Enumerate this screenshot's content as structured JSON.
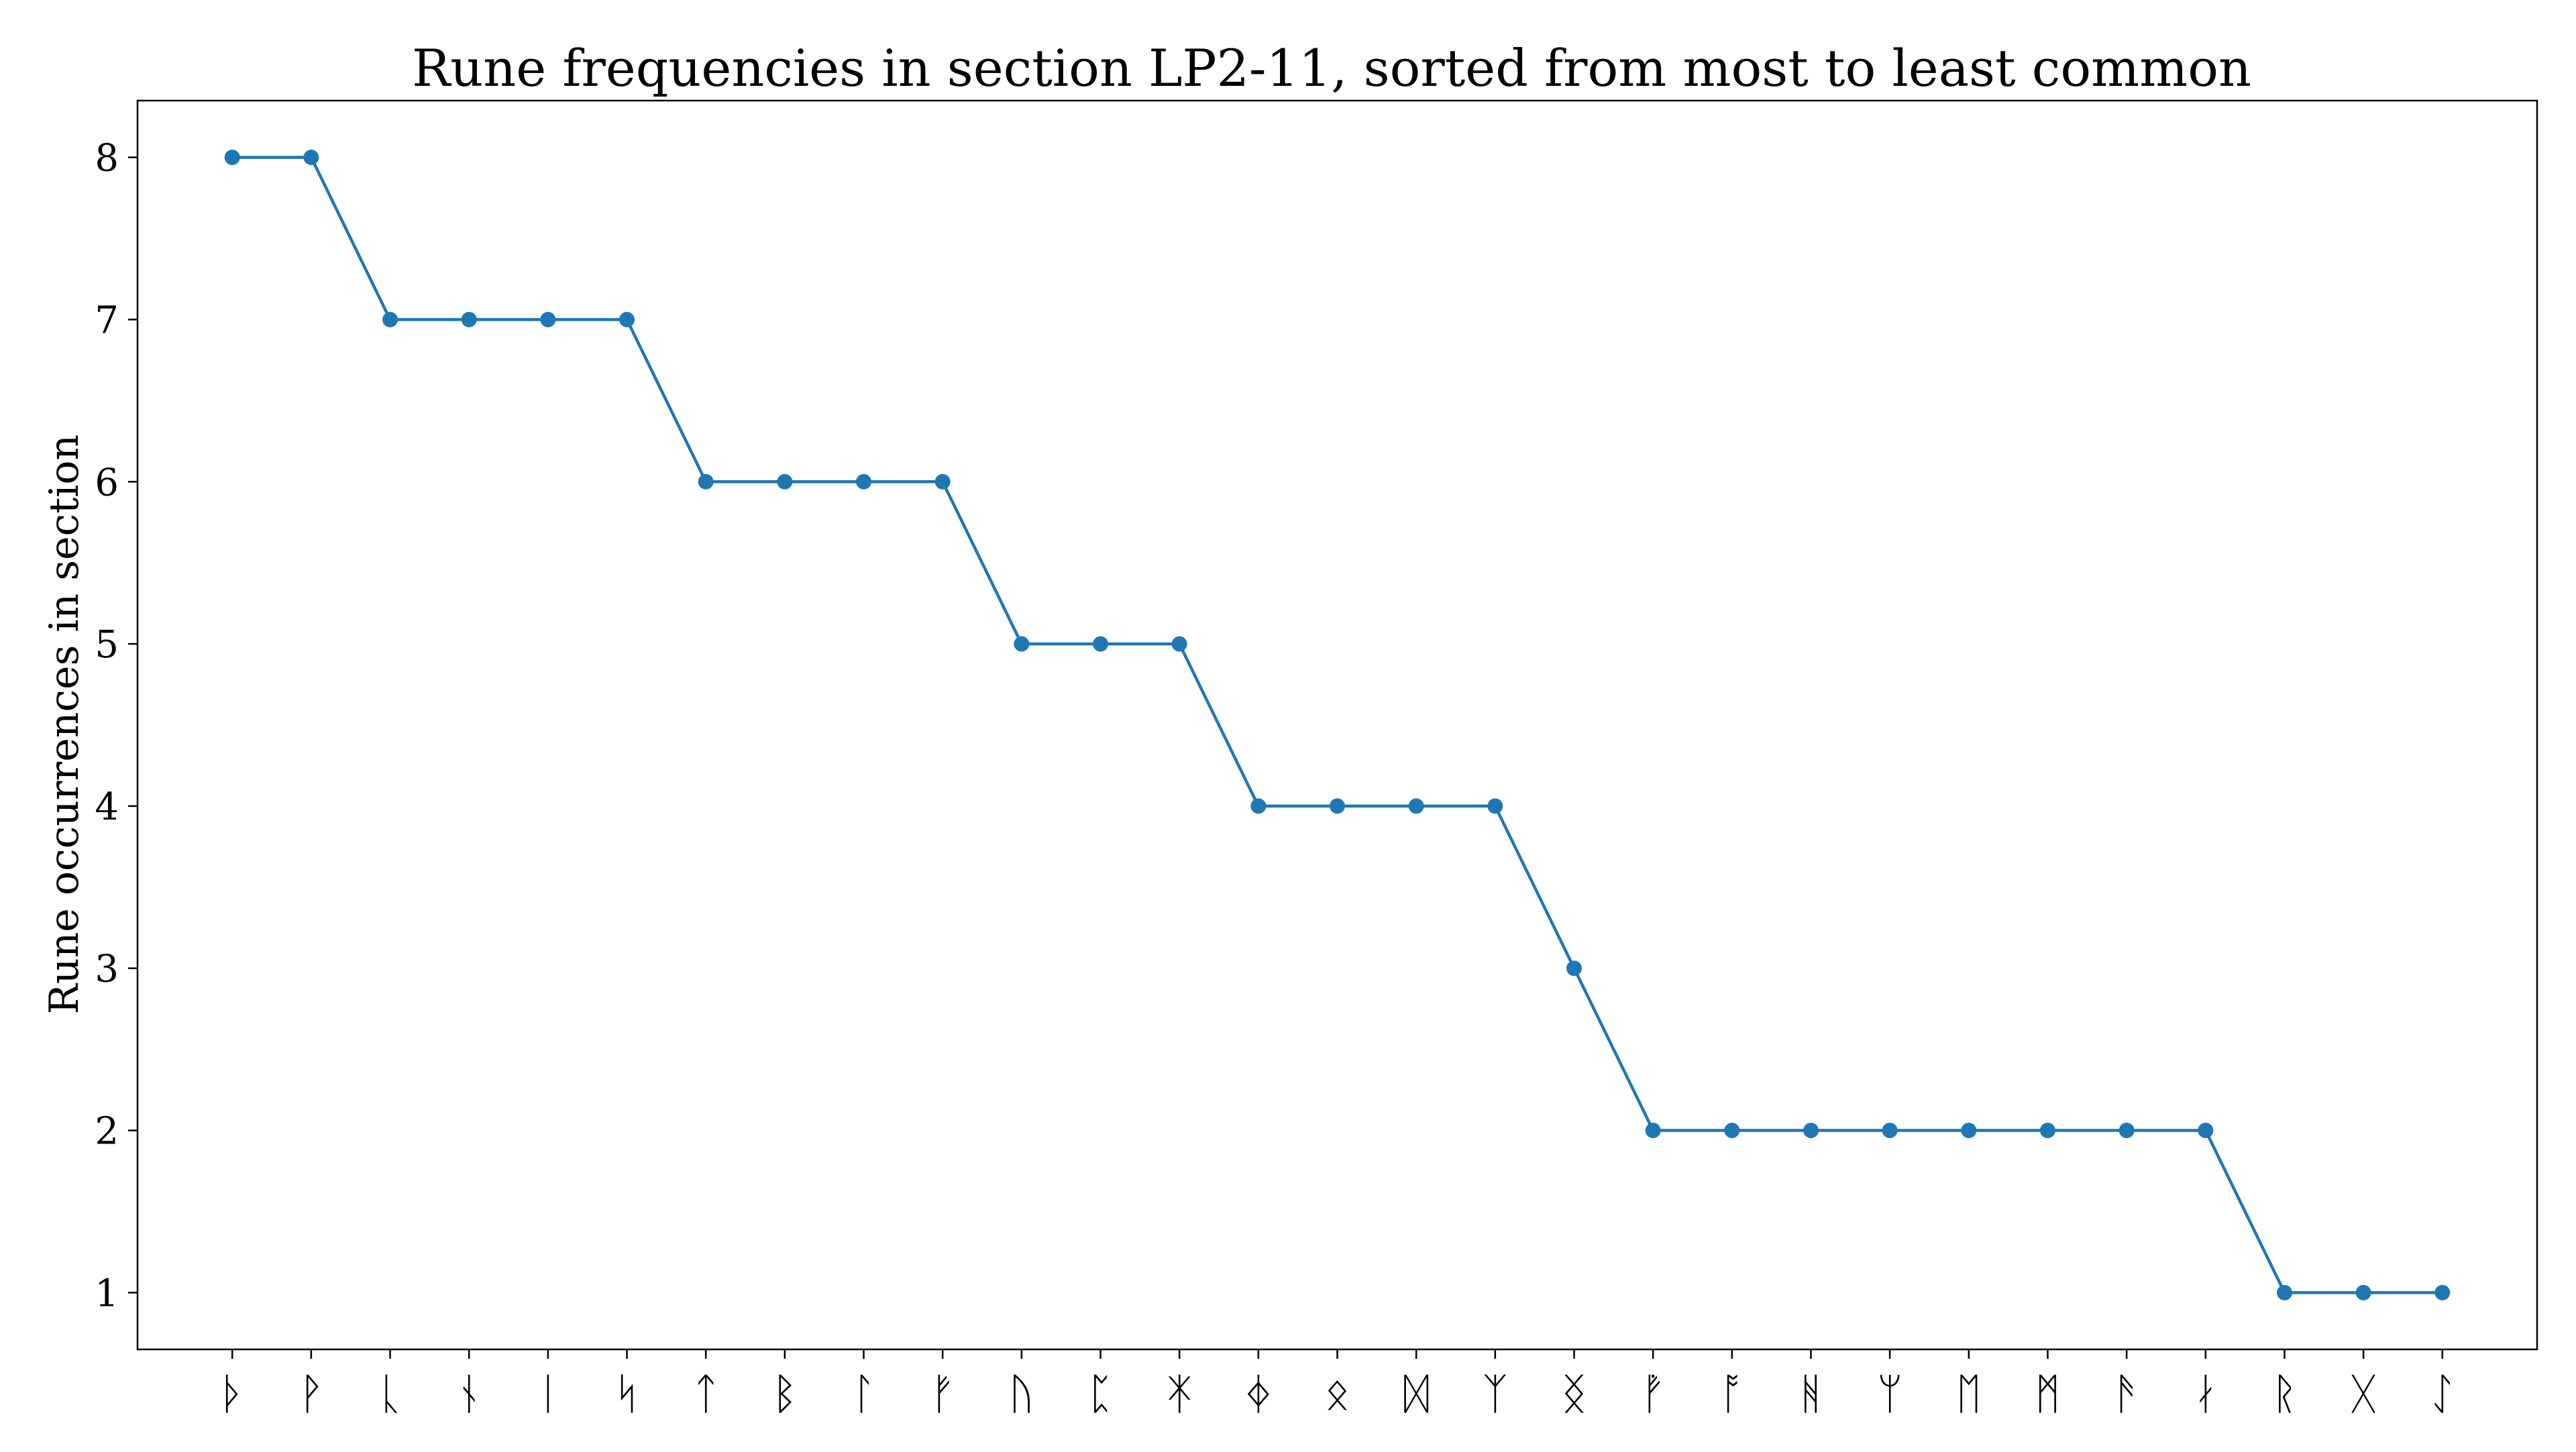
{
  "chart_data": {
    "type": "line",
    "title": "Rune frequencies in section LP2-11, sorted from most to least common",
    "xlabel": "",
    "ylabel": "Rune occurrences in section",
    "categories": [
      "ᚦ",
      "ᚹ",
      "ᚳ",
      "ᚾ",
      "ᛁ",
      "ᛋ",
      "ᛏ",
      "ᛒ",
      "ᛚ",
      "ᚠ",
      "ᚢ",
      "ᛈ",
      "ᛡ",
      "ᛄ",
      "ᛟ",
      "ᛞ",
      "ᛉ",
      "ᛝ",
      "ᚡ",
      "ᚩ",
      "ᚻ",
      "ᛘ",
      "ᛖ",
      "ᛗ",
      "ᚫ",
      "ᛅ",
      "ᚱ",
      "ᚷ",
      "ᛇ"
    ],
    "values": [
      8,
      8,
      7,
      7,
      7,
      7,
      6,
      6,
      6,
      6,
      5,
      5,
      5,
      4,
      4,
      4,
      4,
      3,
      2,
      2,
      2,
      2,
      2,
      2,
      2,
      2,
      1,
      1,
      1
    ],
    "ylim": [
      0.65,
      8.35
    ],
    "yticks": [
      1,
      2,
      3,
      4,
      5,
      6,
      7,
      8
    ],
    "grid": false,
    "color": "#1f77b4"
  }
}
